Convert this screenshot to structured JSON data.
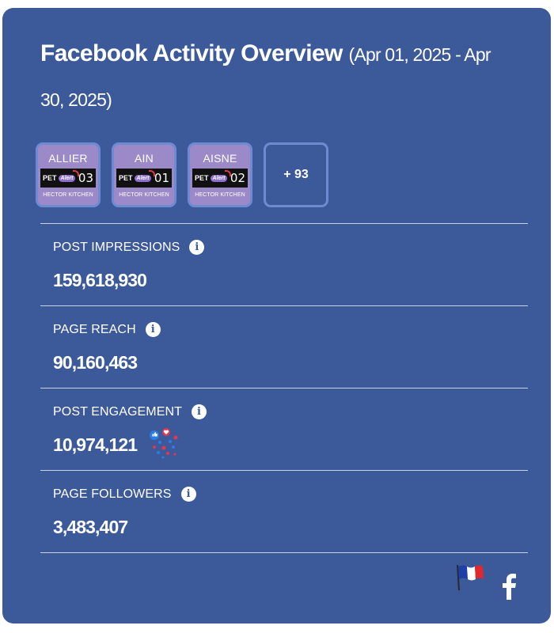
{
  "header": {
    "title": "Facebook Activity Overview",
    "date_range": "(Apr 01, 2025 - Apr 30, 2025)"
  },
  "pages": {
    "items": [
      {
        "name": "ALLIER",
        "brand_pet": "PET",
        "brand_alert": "Alert",
        "number": "03",
        "owner": "HECTOR KITCHEN"
      },
      {
        "name": "AIN",
        "brand_pet": "PET",
        "brand_alert": "Alert",
        "number": "01",
        "owner": "HECTOR KITCHEN"
      },
      {
        "name": "AISNE",
        "brand_pet": "PET",
        "brand_alert": "Alert",
        "number": "02",
        "owner": "HECTOR KITCHEN"
      }
    ],
    "more_label": "+ 93"
  },
  "metrics": [
    {
      "label": "POST IMPRESSIONS",
      "value": "159,618,930",
      "icon": "info-icon"
    },
    {
      "label": "PAGE REACH",
      "value": "90,160,463",
      "icon": "info-icon"
    },
    {
      "label": "POST ENGAGEMENT",
      "value": "10,974,121",
      "icon": "info-icon",
      "extra_icon": "reactions-icon"
    },
    {
      "label": "PAGE FOLLOWERS",
      "value": "3,483,407",
      "icon": "info-icon"
    }
  ],
  "footer": {
    "flag_icon": "france-flag-icon",
    "platform_icon": "facebook-icon"
  },
  "colors": {
    "card_background": "#3c5a9a",
    "thumb_background": "#9c8ac8",
    "thumb_border": "#6d8bd0",
    "divider": "#c9d3ea"
  }
}
